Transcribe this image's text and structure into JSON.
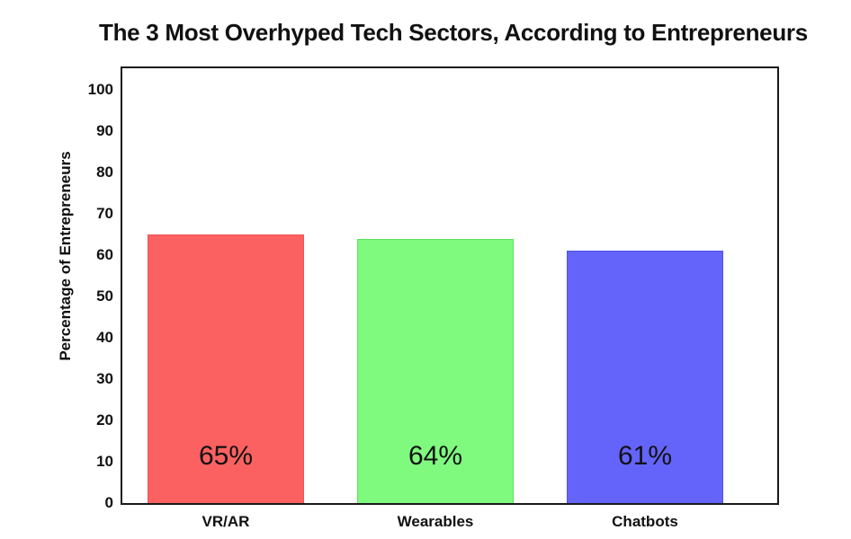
{
  "chart_data": {
    "type": "bar",
    "title": "The 3 Most Overhyped Tech Sectors, According to Entrepreneurs",
    "categories": [
      "VR/AR",
      "Wearables",
      "Chatbots"
    ],
    "values": [
      65,
      64,
      61
    ],
    "data_labels": [
      "65%",
      "64%",
      "61%"
    ],
    "bar_colors": [
      "#FB6161",
      "#7FFA7F",
      "#6464FA"
    ],
    "bar_edge_colors": [
      "#EF5252",
      "#5CE35C",
      "#5353E8"
    ],
    "xlabel": "",
    "ylabel": "Percentage of Entrepreneurs",
    "ylim": [
      0,
      105
    ],
    "yticks": [
      0,
      10,
      20,
      30,
      40,
      50,
      60,
      70,
      80,
      90,
      100
    ],
    "grid": false,
    "legend": false,
    "text_color": "#111111",
    "frame_color": "#1a1a1a",
    "background_color": "#ffffff"
  }
}
